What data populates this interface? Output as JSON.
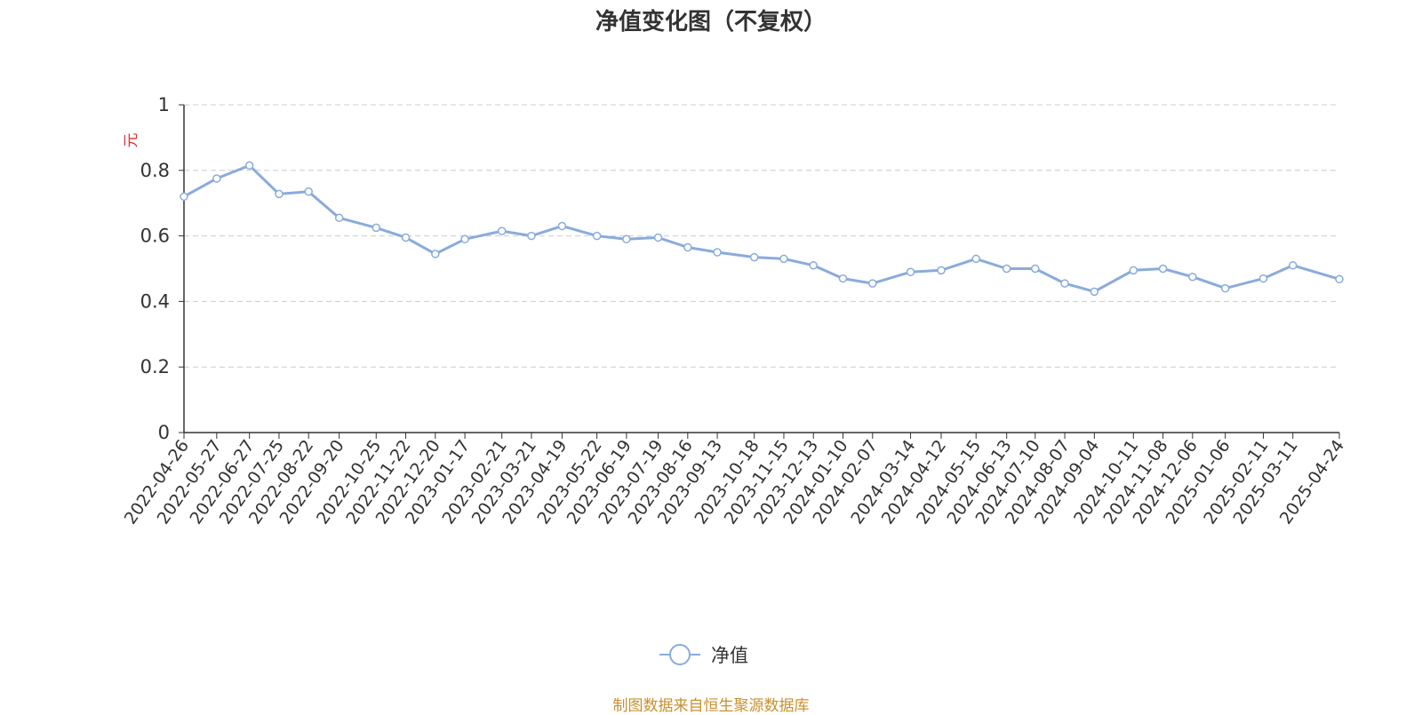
{
  "colors": {
    "line": "#8aabdb",
    "grid": "#cccccc",
    "axis": "#333333",
    "ylabel": "#e03030",
    "source": "#c8902f"
  },
  "chart_data": {
    "type": "line",
    "title": "净值变化图（不复权）",
    "ylabel": "元",
    "ylim": [
      0,
      1
    ],
    "yticks": [
      "0",
      "0.2",
      "0.4",
      "0.6",
      "0.8",
      "1"
    ],
    "grid": true,
    "legend_position": "bottom-center",
    "x_ticks": [
      "2022-04-26",
      "2022-05-27",
      "2022-06-27",
      "2022-07-25",
      "2022-08-22",
      "2022-09-20",
      "2022-10-25",
      "2022-11-22",
      "2022-12-20",
      "2023-01-17",
      "2023-02-21",
      "2023-03-21",
      "2023-04-19",
      "2023-05-22",
      "2023-06-19",
      "2023-07-19",
      "2023-08-16",
      "2023-09-13",
      "2023-10-18",
      "2023-11-15",
      "2023-12-13",
      "2024-01-10",
      "2024-02-07",
      "2024-03-14",
      "2024-04-12",
      "2024-05-15",
      "2024-06-13",
      "2024-07-10",
      "2024-08-07",
      "2024-09-04",
      "2024-10-11",
      "2024-11-08",
      "2024-12-06",
      "2025-01-06",
      "2025-02-11",
      "2025-03-11",
      "2025-04-24"
    ],
    "series": [
      {
        "name": "净值",
        "x": [
          "2022-04-26",
          "2022-05-27",
          "2022-06-27",
          "2022-07-25",
          "2022-08-22",
          "2022-09-20",
          "2022-10-25",
          "2022-11-22",
          "2022-12-20",
          "2023-01-17",
          "2023-02-21",
          "2023-03-21",
          "2023-04-19",
          "2023-05-22",
          "2023-06-19",
          "2023-07-19",
          "2023-08-16",
          "2023-09-13",
          "2023-10-18",
          "2023-11-15",
          "2023-12-13",
          "2024-01-10",
          "2024-02-07",
          "2024-03-14",
          "2024-04-12",
          "2024-05-15",
          "2024-06-13",
          "2024-07-10",
          "2024-08-07",
          "2024-09-04",
          "2024-10-11",
          "2024-11-08",
          "2024-12-06",
          "2025-01-06",
          "2025-02-11",
          "2025-03-11",
          "2025-04-24"
        ],
        "values": [
          0.72,
          0.775,
          0.815,
          0.728,
          0.735,
          0.655,
          0.625,
          0.595,
          0.545,
          0.59,
          0.615,
          0.6,
          0.63,
          0.6,
          0.59,
          0.595,
          0.565,
          0.55,
          0.535,
          0.53,
          0.51,
          0.47,
          0.455,
          0.49,
          0.495,
          0.53,
          0.5,
          0.5,
          0.455,
          0.43,
          0.495,
          0.5,
          0.475,
          0.44,
          0.47,
          0.51,
          0.468
        ]
      }
    ]
  },
  "legend": {
    "label": "净值"
  },
  "source_note": "制图数据来自恒生聚源数据库"
}
